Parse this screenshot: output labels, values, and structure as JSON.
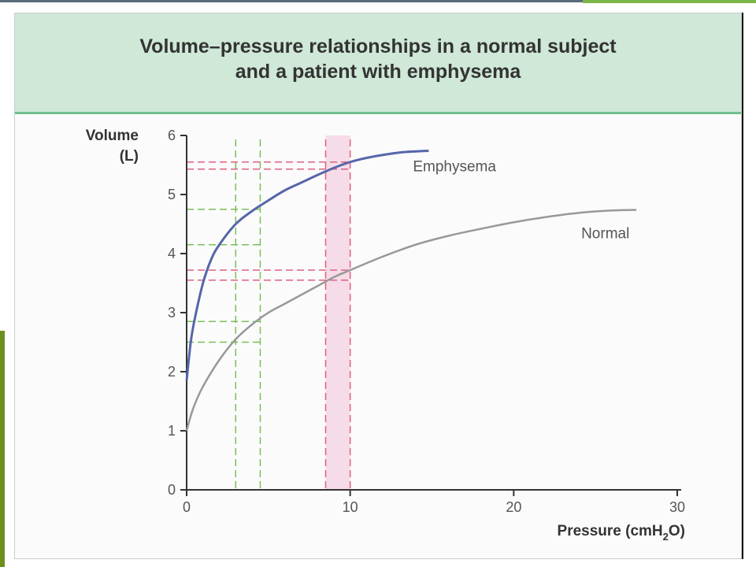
{
  "chart_data": {
    "type": "line",
    "title_line1": "Volume–pressure relationships in a normal subject",
    "title_line2": "and a patient with emphysema",
    "ylabel_line1": "Volume",
    "ylabel_line2": "(L)",
    "xlabel_prefix": "Pressure (cmH",
    "xlabel_sub": "2",
    "xlabel_suffix": "O)",
    "xlim": [
      0,
      30
    ],
    "ylim": [
      0,
      6
    ],
    "xticks": [
      0,
      10,
      20,
      30
    ],
    "yticks": [
      0,
      1,
      2,
      3,
      4,
      5,
      6
    ],
    "series": [
      {
        "name": "Emphysema",
        "color": "#5566aa",
        "x": [
          0,
          0.25,
          0.5,
          1,
          1.5,
          2,
          3,
          4,
          5,
          6,
          7,
          8,
          9,
          10,
          11,
          12,
          13,
          14,
          14.8
        ],
        "y": [
          1.85,
          2.5,
          2.9,
          3.5,
          3.9,
          4.15,
          4.5,
          4.72,
          4.9,
          5.07,
          5.2,
          5.33,
          5.45,
          5.55,
          5.62,
          5.67,
          5.71,
          5.73,
          5.74
        ]
      },
      {
        "name": "Normal",
        "color": "#999999",
        "x": [
          0,
          0.25,
          0.5,
          1,
          2,
          3,
          4,
          5,
          6,
          7,
          8,
          9,
          10,
          12,
          14,
          16,
          18,
          20,
          22,
          24,
          26,
          27.5
        ],
        "y": [
          1.0,
          1.25,
          1.45,
          1.75,
          2.2,
          2.55,
          2.8,
          3.0,
          3.15,
          3.3,
          3.45,
          3.6,
          3.72,
          3.95,
          4.15,
          4.3,
          4.42,
          4.53,
          4.62,
          4.69,
          4.73,
          4.74
        ]
      }
    ],
    "annotations": {
      "green_vlines_x": [
        3,
        4.5
      ],
      "green_hlines_y": [
        2.5,
        2.85,
        4.15,
        4.75
      ],
      "red_vlines_x": [
        8.5,
        10
      ],
      "red_hlines_y": [
        3.55,
        3.72,
        5.43,
        5.55
      ],
      "shaded_x_range": [
        8.5,
        10
      ],
      "green_color": "#7bbf5a",
      "red_color": "#e06080",
      "shade_color": "#f3cfe0"
    }
  }
}
